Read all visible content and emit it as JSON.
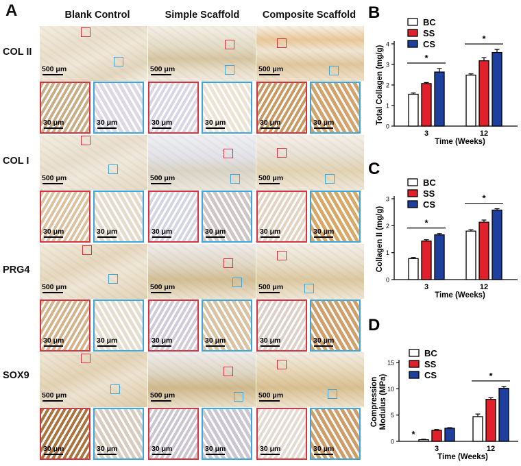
{
  "panel_a": {
    "letter": "A",
    "columns": [
      "Blank Control",
      "Simple Scaffold",
      "Composite Scaffold"
    ],
    "rows": [
      "COL II",
      "COL I",
      "PRG4",
      "SOX9"
    ],
    "scale_overview": "500 μm",
    "scale_zoom": "30 μm"
  },
  "chart_data": [
    {
      "panel": "B",
      "type": "bar",
      "ylabel": "Total Collagen (mg/g)",
      "xlabel": "Time (Weeks)",
      "categories": [
        "3",
        "12"
      ],
      "ylim": [
        0,
        4
      ],
      "yticks": [
        0,
        1,
        2,
        3,
        4
      ],
      "series": [
        {
          "name": "BC",
          "color": "#ffffff",
          "values": [
            1.55,
            2.48
          ],
          "errors": [
            0.06,
            0.06
          ]
        },
        {
          "name": "SS",
          "color": "#e0202a",
          "values": [
            2.07,
            3.18
          ],
          "errors": [
            0.05,
            0.15
          ]
        },
        {
          "name": "CS",
          "color": "#1e3f9c",
          "values": [
            2.63,
            3.58
          ],
          "errors": [
            0.17,
            0.15
          ]
        }
      ],
      "significance": [
        {
          "label": "*",
          "group": 0
        },
        {
          "label": "*",
          "group": 1
        }
      ]
    },
    {
      "panel": "C",
      "type": "bar",
      "ylabel": "Collagen II (mg/g)",
      "xlabel": "Time (Weeks)",
      "categories": [
        "3",
        "12"
      ],
      "ylim": [
        0,
        3
      ],
      "yticks": [
        0,
        1,
        2,
        3
      ],
      "series": [
        {
          "name": "BC",
          "color": "#ffffff",
          "values": [
            0.78,
            1.8
          ],
          "errors": [
            0.04,
            0.05
          ]
        },
        {
          "name": "SS",
          "color": "#e0202a",
          "values": [
            1.43,
            2.13
          ],
          "errors": [
            0.05,
            0.08
          ]
        },
        {
          "name": "CS",
          "color": "#1e3f9c",
          "values": [
            1.66,
            2.58
          ],
          "errors": [
            0.05,
            0.05
          ]
        }
      ],
      "significance": [
        {
          "label": "*",
          "group": 0
        },
        {
          "label": "*",
          "group": 1
        }
      ]
    },
    {
      "panel": "D",
      "type": "bar",
      "ylabel": "Compression Modulus (MPa)",
      "xlabel": "Time (Weeks)",
      "categories": [
        "3",
        "12"
      ],
      "ylim": [
        0,
        15
      ],
      "yticks": [
        0,
        5,
        10,
        15
      ],
      "series": [
        {
          "name": "BC",
          "color": "#ffffff",
          "values": [
            0.3,
            4.7
          ],
          "errors": [
            0.1,
            0.5
          ]
        },
        {
          "name": "SS",
          "color": "#e0202a",
          "values": [
            2.1,
            8.0
          ],
          "errors": [
            0.15,
            0.3
          ]
        },
        {
          "name": "CS",
          "color": "#1e3f9c",
          "values": [
            2.5,
            10.1
          ],
          "errors": [
            0.1,
            0.35
          ]
        }
      ],
      "significance": [
        {
          "label": "*",
          "group": 0,
          "style": "single"
        },
        {
          "label": "*",
          "group": 1
        }
      ]
    }
  ]
}
